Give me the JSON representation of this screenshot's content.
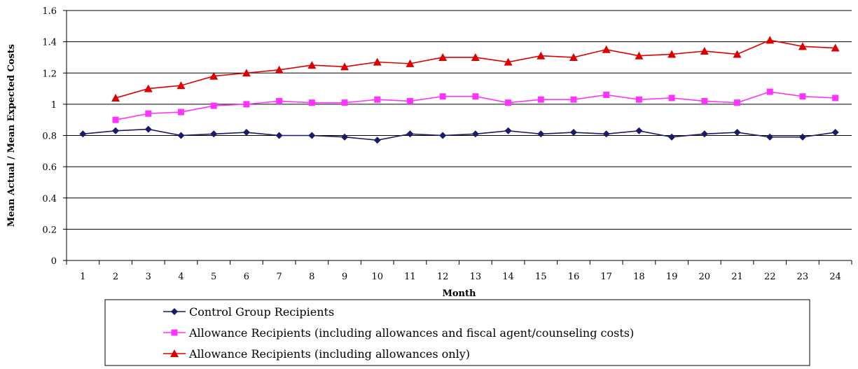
{
  "chart_data": {
    "type": "line",
    "title": "",
    "xlabel": "Month",
    "ylabel": "Mean Actual / Mean Expected Costs",
    "ylim": [
      0,
      1.6
    ],
    "y_ticks": [
      "0",
      "0.2",
      "0.4",
      "0.6",
      "0.8",
      "1",
      "1.2",
      "1.4",
      "1.6"
    ],
    "categories": [
      "1",
      "2",
      "3",
      "4",
      "5",
      "6",
      "7",
      "8",
      "9",
      "10",
      "11",
      "12",
      "13",
      "14",
      "15",
      "16",
      "17",
      "18",
      "19",
      "20",
      "21",
      "22",
      "23",
      "24"
    ],
    "grid": "horizontal",
    "legend_position": "bottom",
    "series": [
      {
        "name": "Control Group Recipients",
        "color": "#1a1a66",
        "marker": "diamond",
        "values": [
          0.81,
          0.83,
          0.84,
          0.8,
          0.81,
          0.82,
          0.8,
          0.8,
          0.79,
          0.77,
          0.81,
          0.8,
          0.81,
          0.83,
          0.81,
          0.82,
          0.81,
          0.83,
          0.79,
          0.81,
          0.82,
          0.79,
          0.79,
          0.82
        ]
      },
      {
        "name": "Allowance Recipients (including allowances and fiscal agent/counseling costs)",
        "color": "#ff33ff",
        "marker": "square",
        "values": [
          null,
          0.9,
          0.94,
          0.95,
          0.99,
          1.0,
          1.02,
          1.01,
          1.01,
          1.03,
          1.02,
          1.05,
          1.05,
          1.01,
          1.03,
          1.03,
          1.06,
          1.03,
          1.04,
          1.02,
          1.01,
          1.08,
          1.05,
          1.04
        ]
      },
      {
        "name": "Allowance Recipients (including allowances only)",
        "color": "#dd0000",
        "marker": "triangle",
        "values": [
          null,
          1.04,
          1.1,
          1.12,
          1.18,
          1.2,
          1.22,
          1.25,
          1.24,
          1.27,
          1.26,
          1.3,
          1.3,
          1.27,
          1.31,
          1.3,
          1.35,
          1.31,
          1.32,
          1.34,
          1.32,
          1.41,
          1.37,
          1.36
        ]
      }
    ]
  }
}
